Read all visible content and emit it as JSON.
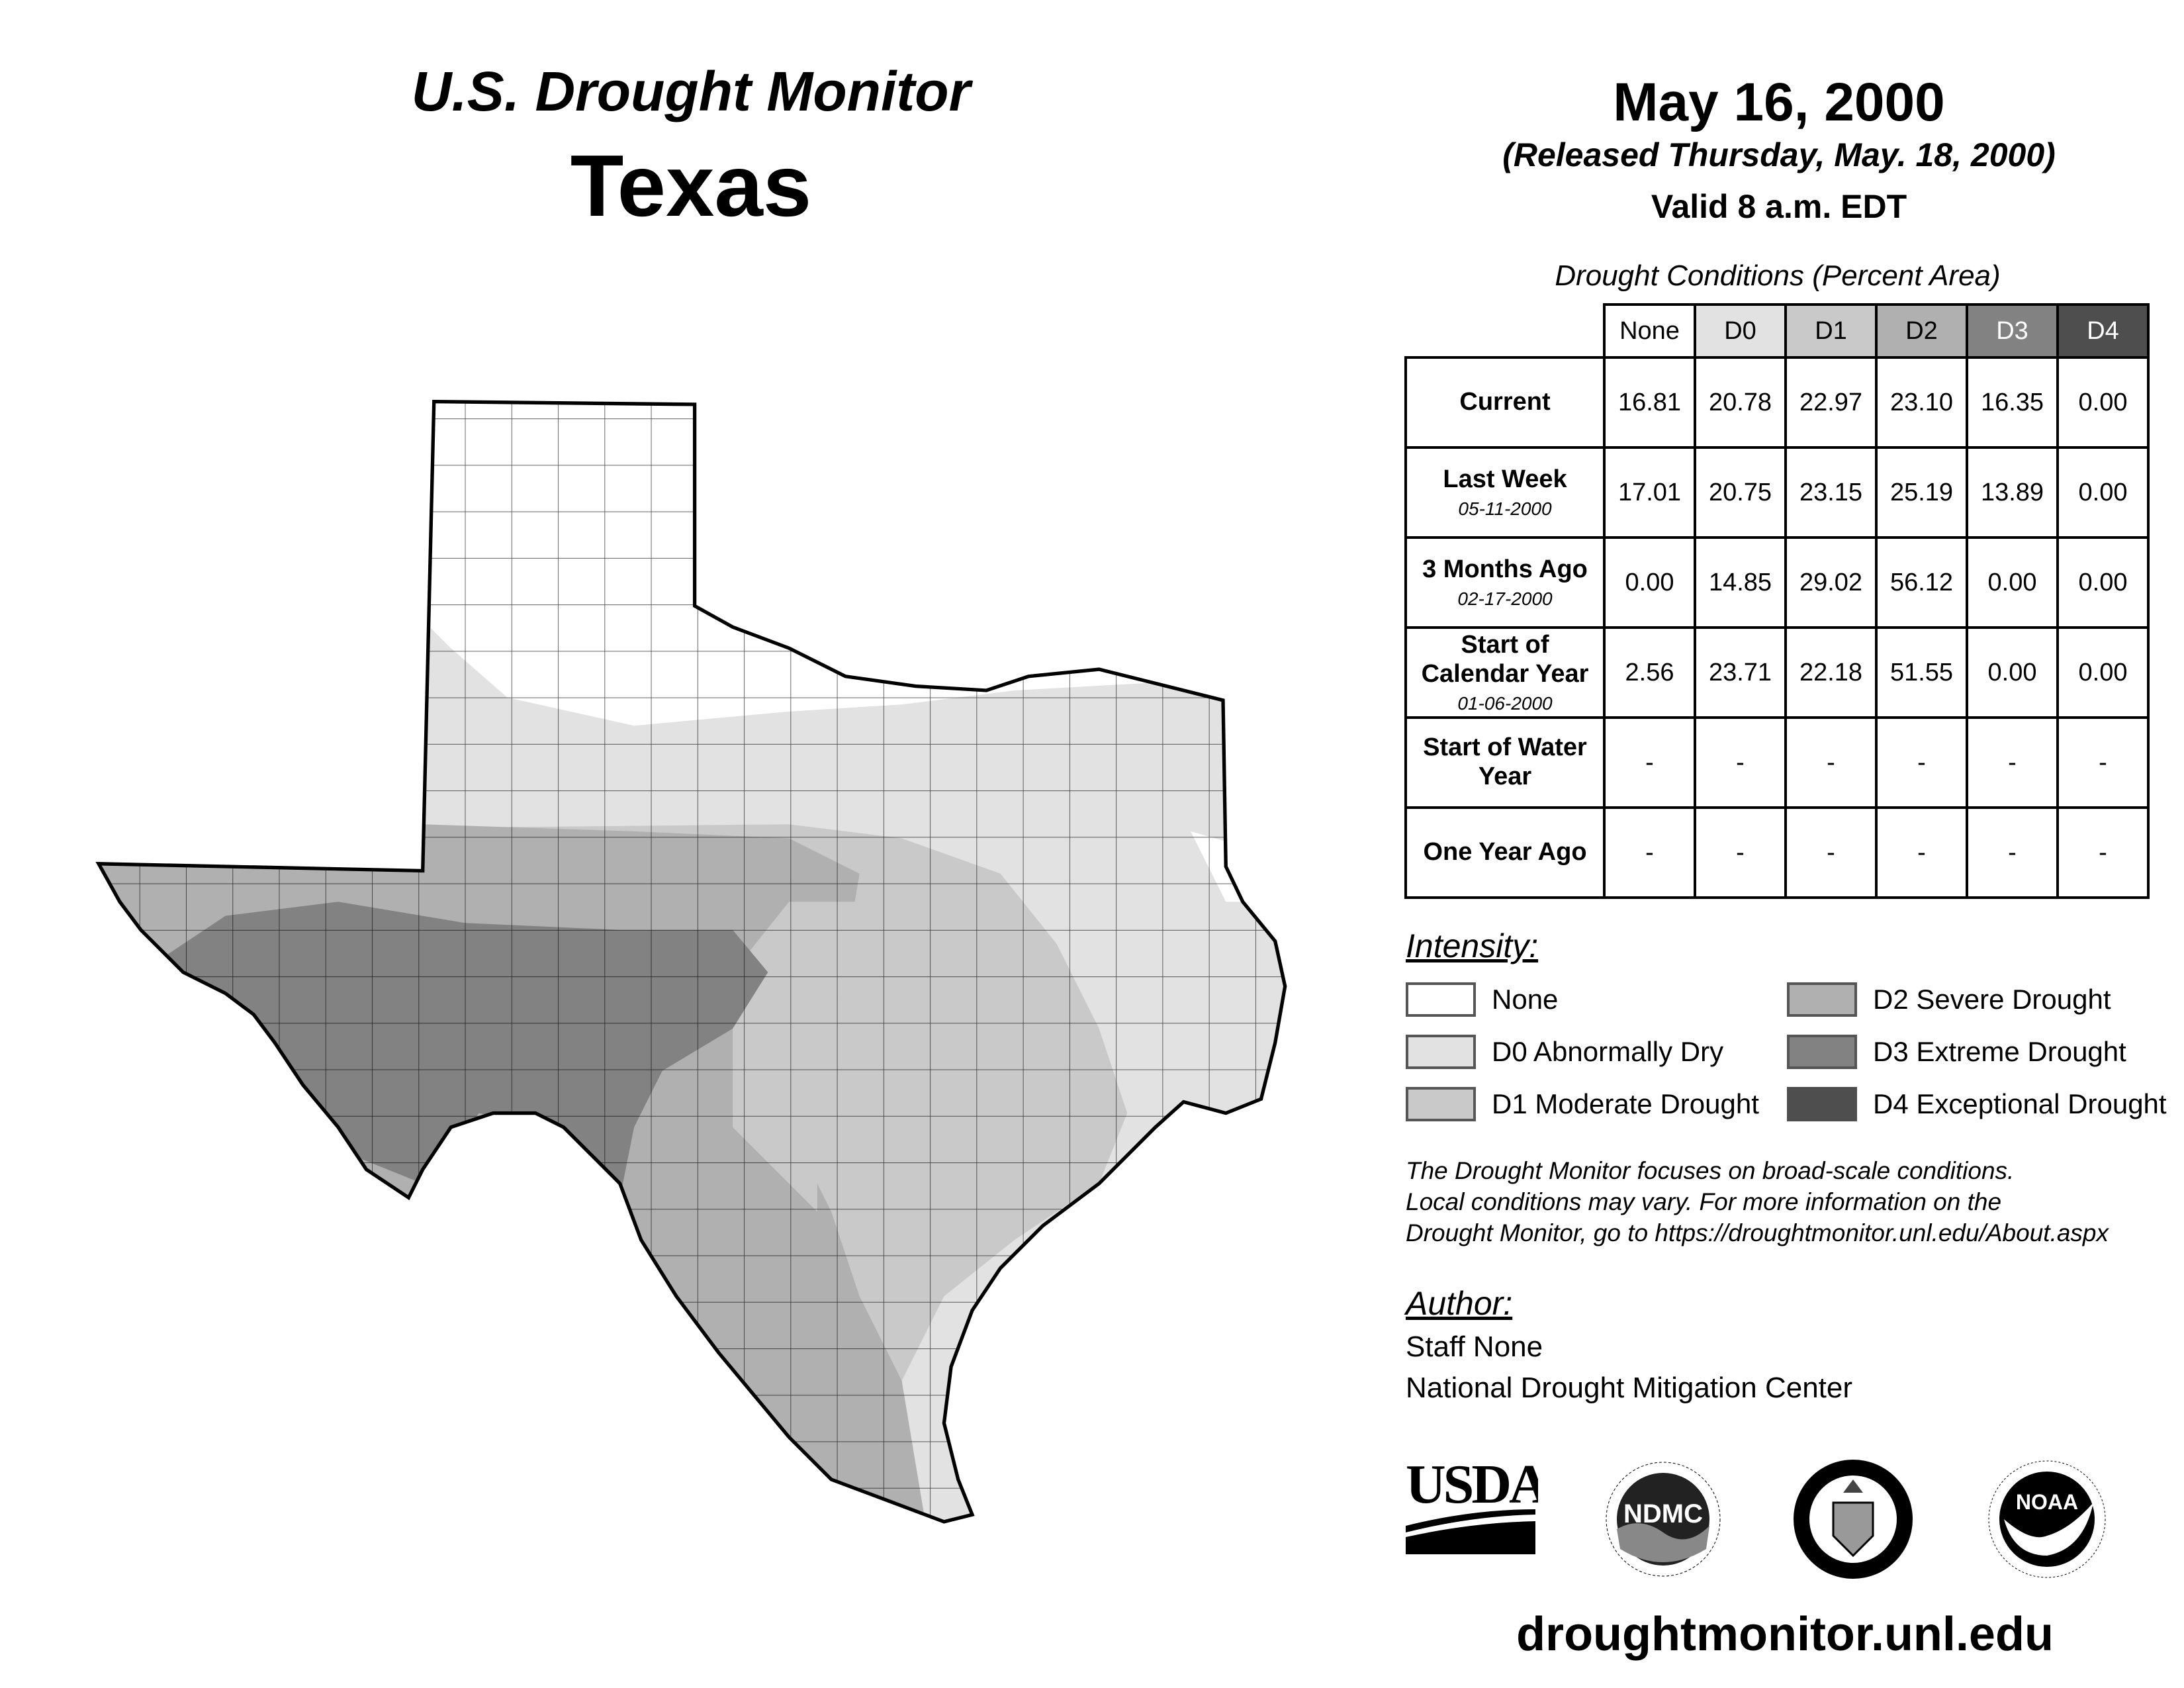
{
  "header": {
    "title": "U.S. Drought Monitor",
    "region": "Texas",
    "date": "May 16, 2000",
    "released": "(Released Thursday, May. 18, 2000)",
    "valid": "Valid 8 a.m. EDT"
  },
  "table": {
    "caption": "Drought Conditions (Percent Area)",
    "columns": [
      "None",
      "D0",
      "D1",
      "D2",
      "D3",
      "D4"
    ],
    "rows": [
      {
        "label": "Current",
        "date": "",
        "values": [
          "16.81",
          "20.78",
          "22.97",
          "23.10",
          "16.35",
          "0.00"
        ]
      },
      {
        "label": "Last Week",
        "date": "05-11-2000",
        "values": [
          "17.01",
          "20.75",
          "23.15",
          "25.19",
          "13.89",
          "0.00"
        ]
      },
      {
        "label": "3 Months Ago",
        "date": "02-17-2000",
        "values": [
          "0.00",
          "14.85",
          "29.02",
          "56.12",
          "0.00",
          "0.00"
        ]
      },
      {
        "label": "Start of Calendar Year",
        "date": "01-06-2000",
        "values": [
          "2.56",
          "23.71",
          "22.18",
          "51.55",
          "0.00",
          "0.00"
        ]
      },
      {
        "label": "Start of Water Year",
        "date": "",
        "values": [
          "-",
          "-",
          "-",
          "-",
          "-",
          "-"
        ]
      },
      {
        "label": "One Year Ago",
        "date": "",
        "values": [
          "-",
          "-",
          "-",
          "-",
          "-",
          "-"
        ]
      }
    ]
  },
  "legend": {
    "title": "Intensity:",
    "items": [
      {
        "label": "None",
        "color": "#ffffff"
      },
      {
        "label": "D0 Abnormally Dry",
        "color": "#e2e2e2"
      },
      {
        "label": "D1 Moderate Drought",
        "color": "#c9c9c9"
      },
      {
        "label": "D2 Severe Drought",
        "color": "#b0b0b0"
      },
      {
        "label": "D3 Extreme Drought",
        "color": "#828282"
      },
      {
        "label": "D4 Exceptional Drought",
        "color": "#4e4e4e"
      }
    ]
  },
  "disclaimer": [
    "The Drought Monitor focuses on broad-scale conditions.",
    "Local conditions may vary. For more information on the",
    "Drought Monitor, go to https://droughtmonitor.unl.edu/About.aspx"
  ],
  "author": {
    "title": "Author:",
    "name": "Staff None",
    "org": "National Drought Mitigation Center"
  },
  "logos": {
    "usda": "USDA",
    "ndmc": "NDMC",
    "ndmc_ring": "NATIONAL DROUGHT MITIGATION CENTER · UNIVERSITY OF NEBRASKA",
    "doc_ring": "DEPARTMENT OF COMMERCE · UNITED STATES OF AMERICA",
    "noaa": "NOAA",
    "noaa_ring": "NATIONAL OCEANIC AND ATMOSPHERIC ADMINISTRATION · U.S. DEPARTMENT OF COMMERCE"
  },
  "footer": {
    "url": "droughtmonitor.unl.edu"
  }
}
